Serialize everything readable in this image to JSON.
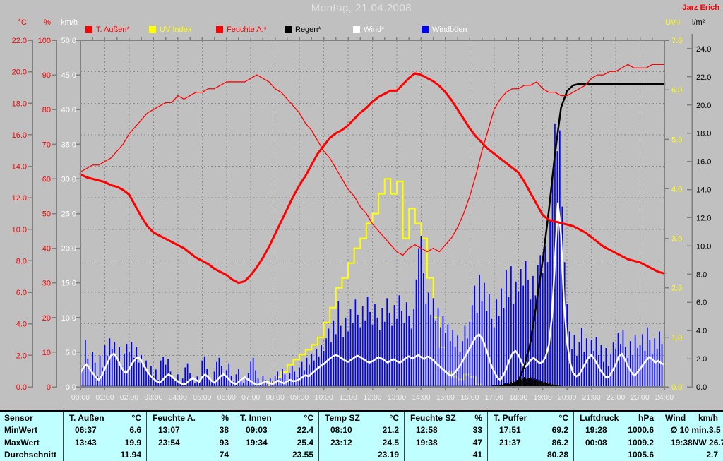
{
  "window": {
    "title": "Montag, 21.04.2008",
    "author": "Jarz Erich"
  },
  "legend": [
    {
      "label": "T. Außen*",
      "swatch": "#ff0000",
      "text_color": "#ff0000"
    },
    {
      "label": "UV Index",
      "swatch": "#ffff00",
      "text_color": "#ffff00"
    },
    {
      "label": "Feuchte A.*",
      "swatch": "#ff0000",
      "text_color": "#ff0000"
    },
    {
      "label": "Regen*",
      "swatch": "#000000",
      "text_color": "#000000"
    },
    {
      "label": "Wind*",
      "swatch": "#ffffff",
      "text_color": "#ffffff"
    },
    {
      "label": "Windböen",
      "swatch": "#0000ff",
      "text_color": "#ffffff"
    }
  ],
  "axes": {
    "left": [
      {
        "title": "°C",
        "color": "#ff0000",
        "min": 0,
        "max": 22,
        "step": 2,
        "decimals": 1
      },
      {
        "title": "%",
        "color": "#ff0000",
        "min": 0,
        "max": 100,
        "step": 10,
        "decimals": 0
      },
      {
        "title": "km/h",
        "color": "#ffffff",
        "min": 0,
        "max": 50,
        "step": 5,
        "decimals": 1
      }
    ],
    "right": [
      {
        "title": "UV-I",
        "color": "#ffff00",
        "min": 0,
        "max": 7,
        "step": 1,
        "decimals": 1,
        "scale_max": 7
      },
      {
        "title": "l/m²",
        "color": "#000000",
        "min": 0,
        "max": 24,
        "step": 2,
        "decimals": 1,
        "scale_max": 24.6
      }
    ],
    "x_labels": [
      "00:00",
      "01:00",
      "02:00",
      "03:00",
      "04:00",
      "05:00",
      "06:00",
      "07:00",
      "08:00",
      "09:00",
      "10:00",
      "11:00",
      "12:00",
      "13:00",
      "14:00",
      "15:00",
      "16:00",
      "17:00",
      "18:00",
      "19:00",
      "20:00",
      "21:00",
      "22:00",
      "23:00",
      "24:00"
    ]
  },
  "chart_data": {
    "type": "line",
    "title": "Montag, 21.04.2008",
    "x_unit": "hours",
    "x_range": [
      0,
      24
    ],
    "grid": {
      "vertical_every_hours": 1,
      "horizontal_every_degC": 2
    },
    "series": [
      {
        "name": "T. Außen",
        "unit": "°C",
        "color": "#ff0000",
        "draw": "line",
        "width": 3,
        "axis_max": 22,
        "x_step": 0.25,
        "values": [
          13.5,
          13.3,
          13.2,
          13.1,
          13.0,
          12.8,
          12.7,
          12.5,
          12.2,
          11.5,
          10.8,
          10.2,
          9.8,
          9.6,
          9.4,
          9.2,
          9.0,
          8.8,
          8.5,
          8.2,
          8.0,
          7.8,
          7.5,
          7.3,
          7.1,
          6.8,
          6.6,
          6.7,
          7.1,
          7.6,
          8.2,
          8.9,
          9.7,
          10.5,
          11.3,
          12.1,
          12.8,
          13.4,
          14.1,
          14.8,
          15.3,
          15.8,
          16.1,
          16.3,
          16.6,
          17.0,
          17.4,
          17.7,
          18.1,
          18.4,
          18.6,
          18.8,
          18.8,
          19.2,
          19.6,
          19.9,
          19.8,
          19.6,
          19.4,
          19.1,
          18.7,
          18.2,
          17.6,
          17.0,
          16.4,
          15.9,
          15.5,
          15.1,
          14.8,
          14.5,
          14.2,
          13.9,
          13.6,
          13.0,
          12.3,
          11.6,
          10.9,
          10.6,
          10.5,
          10.4,
          10.3,
          10.2,
          10.0,
          9.8,
          9.5,
          9.2,
          8.9,
          8.7,
          8.5,
          8.3,
          8.1,
          8.0,
          7.9,
          7.7,
          7.5,
          7.3,
          7.2
        ]
      },
      {
        "name": "Feuchte A.",
        "unit": "%",
        "color": "#ff0000",
        "draw": "line",
        "width": 1.3,
        "axis_max": 100,
        "x_step": 0.25,
        "values": [
          62,
          63,
          64,
          64,
          65,
          66,
          68,
          70,
          73,
          75,
          77,
          79,
          80,
          81,
          82,
          82,
          84,
          83,
          84,
          85,
          85,
          86,
          86,
          87,
          88,
          88,
          88,
          88,
          89,
          90,
          89,
          88,
          86,
          85,
          83,
          81,
          79,
          76,
          74,
          71,
          68,
          66,
          63,
          60,
          57,
          55,
          52,
          50,
          47,
          45,
          43,
          41,
          39,
          38,
          40,
          41,
          40,
          39,
          40,
          39,
          41,
          43,
          46,
          50,
          55,
          61,
          68,
          74,
          80,
          83,
          85,
          86,
          86,
          87,
          87,
          88,
          86,
          85,
          85,
          84,
          84,
          85,
          86,
          87,
          89,
          90,
          90,
          91,
          91,
          92,
          93,
          92,
          92,
          92,
          93,
          93,
          93
        ]
      },
      {
        "name": "UV Index",
        "unit": "UV-I",
        "color": "#ffff00",
        "draw": "step",
        "width": 2,
        "axis_max": 7,
        "x_step": 0.25,
        "values": [
          0,
          0,
          0,
          0,
          0,
          0,
          0,
          0,
          0,
          0,
          0,
          0,
          0,
          0,
          0,
          0,
          0,
          0,
          0,
          0,
          0,
          0,
          0,
          0,
          0,
          0,
          0,
          0,
          0,
          0,
          0,
          0.1,
          0.2,
          0.3,
          0.45,
          0.55,
          0.65,
          0.75,
          0.85,
          1.0,
          1.3,
          1.6,
          2.0,
          2.2,
          2.5,
          2.8,
          3.0,
          3.3,
          3.5,
          3.9,
          4.2,
          3.9,
          4.15,
          3.0,
          3.6,
          3.3,
          3.0,
          2.2,
          1.4,
          0.8,
          0.3,
          0.2,
          0.15,
          0.25,
          0.2,
          0.05,
          0,
          0,
          0,
          0,
          0,
          0,
          0,
          0,
          0,
          0,
          0,
          0,
          0,
          0,
          0,
          0,
          0,
          0,
          0,
          0,
          0,
          0,
          0,
          0,
          0,
          0,
          0,
          0,
          0,
          0,
          0
        ]
      },
      {
        "name": "Windböen",
        "unit": "km/h",
        "color": "#0000ff",
        "draw": "bar",
        "bar_w": 1.7,
        "axis_max": 50,
        "x_step": 0.1,
        "values": [
          5.5,
          3.0,
          6.8,
          4.0,
          2.5,
          5.0,
          3.5,
          1.5,
          4.5,
          2.8,
          6.0,
          4.5,
          7.0,
          5.5,
          6.5,
          4.0,
          5.8,
          3.0,
          4.8,
          6.2,
          5.0,
          6.5,
          4.2,
          5.8,
          3.5,
          4.6,
          2.8,
          3.8,
          2.0,
          3.0,
          1.5,
          2.5,
          1.0,
          3.8,
          4.3,
          3.2,
          4.0,
          2.2,
          1.2,
          0.8,
          1.8,
          0.6,
          1.2,
          2.8,
          3.4,
          2.0,
          1.0,
          0.5,
          1.5,
          0.8,
          3.8,
          4.4,
          2.6,
          1.4,
          0.8,
          2.2,
          3.6,
          4.2,
          3.0,
          1.8,
          2.4,
          3.4,
          1.6,
          0.8,
          1.8,
          2.6,
          1.2,
          0.6,
          1.4,
          2.0,
          3.6,
          4.2,
          2.4,
          1.2,
          0.6,
          1.6,
          1.0,
          0.4,
          1.2,
          0.8,
          1.6,
          2.2,
          1.2,
          2.6,
          1.8,
          1.0,
          2.0,
          3.0,
          2.2,
          1.4,
          2.8,
          3.6,
          2.4,
          4.2,
          3.2,
          4.8,
          3.8,
          5.4,
          4.4,
          6.0,
          5.2,
          7.0,
          8.4,
          6.4,
          9.6,
          7.6,
          12.4,
          8.8,
          7.2,
          10.0,
          8.0,
          11.2,
          9.2,
          12.6,
          10.4,
          8.6,
          11.6,
          9.6,
          13.0,
          10.8,
          9.0,
          12.0,
          10.0,
          8.2,
          11.4,
          9.4,
          12.8,
          10.6,
          8.8,
          11.8,
          9.8,
          13.2,
          11.0,
          9.2,
          12.2,
          10.2,
          8.4,
          11.2,
          15.5,
          20.0,
          21.8,
          16.5,
          12.0,
          13.6,
          10.4,
          12.8,
          9.6,
          11.4,
          8.6,
          10.2,
          7.8,
          9.0,
          6.6,
          8.2,
          5.8,
          7.4,
          5.0,
          6.6,
          8.8,
          7.0,
          9.4,
          11.8,
          14.6,
          10.6,
          16.2,
          12.4,
          15.0,
          11.0,
          13.4,
          9.8,
          8.6,
          12.6,
          10.2,
          14.2,
          11.4,
          16.8,
          13.0,
          17.4,
          12.0,
          15.2,
          13.8,
          17.0,
          14.6,
          18.2,
          15.4,
          12.6,
          16.0,
          13.2,
          17.6,
          19.0,
          16.4,
          20.4,
          18.0,
          24.0,
          30.0,
          38.0,
          34.0,
          37.0,
          26.0,
          18.0,
          12.0,
          8.0,
          5.5,
          7.5,
          4.5,
          6.5,
          8.5,
          5.0,
          7.0,
          4.0,
          6.8,
          5.2,
          7.2,
          4.6,
          6.0,
          3.6,
          5.6,
          3.0,
          4.8,
          6.4,
          5.4,
          7.8,
          6.2,
          8.2,
          5.8,
          4.2,
          6.6,
          4.6,
          7.4,
          5.6,
          6.0,
          7.6,
          5.2,
          8.6,
          6.8,
          4.8,
          7.0,
          5.4,
          8.0,
          6.2,
          5.0
        ]
      },
      {
        "name": "Wind",
        "unit": "km/h",
        "color": "#ffffff",
        "draw": "line",
        "width": 2.5,
        "axis_max": 50,
        "x_step": 0.125,
        "values": [
          2.0,
          2.8,
          3.3,
          2.6,
          2.0,
          1.4,
          1.0,
          1.6,
          2.6,
          3.6,
          4.5,
          4.8,
          4.2,
          3.2,
          2.4,
          2.0,
          2.6,
          3.4,
          4.0,
          4.3,
          3.8,
          3.0,
          2.2,
          1.6,
          1.2,
          0.8,
          0.6,
          1.0,
          1.5,
          1.8,
          1.5,
          1.1,
          0.8,
          0.5,
          0.3,
          0.6,
          1.0,
          1.3,
          1.0,
          0.7,
          1.4,
          1.8,
          1.4,
          0.9,
          0.6,
          1.0,
          1.5,
          1.8,
          1.5,
          1.0,
          0.6,
          0.4,
          0.7,
          1.1,
          1.4,
          1.1,
          0.8,
          0.5,
          0.3,
          0.4,
          0.6,
          0.8,
          0.6,
          0.4,
          0.6,
          0.9,
          0.7,
          0.5,
          0.8,
          1.0,
          0.8,
          0.9,
          1.1,
          1.4,
          1.7,
          1.5,
          1.9,
          2.3,
          2.7,
          3.0,
          3.3,
          3.7,
          4.1,
          4.4,
          4.6,
          4.4,
          4.1,
          3.8,
          3.6,
          3.9,
          4.2,
          4.5,
          4.3,
          4.0,
          3.7,
          3.5,
          3.7,
          4.0,
          4.3,
          4.1,
          3.8,
          3.5,
          3.8,
          4.0,
          3.7,
          3.5,
          3.8,
          4.2,
          4.4,
          4.1,
          4.3,
          4.6,
          4.3,
          4.0,
          4.4,
          4.2,
          3.8,
          3.4,
          3.0,
          2.6,
          2.2,
          1.8,
          1.6,
          2.0,
          2.6,
          3.2,
          4.0,
          4.8,
          5.6,
          6.4,
          7.2,
          7.6,
          7.0,
          6.0,
          4.6,
          3.2,
          2.2,
          1.4,
          1.0,
          1.6,
          2.6,
          3.8,
          4.8,
          5.2,
          4.6,
          3.6,
          2.8,
          3.2,
          3.8,
          4.2,
          3.8,
          3.4,
          3.6,
          4.4,
          6.0,
          10.0,
          18.0,
          26.5,
          22.0,
          12.0,
          6.5,
          3.5,
          2.0,
          1.5,
          1.8,
          2.6,
          3.4,
          4.2,
          4.6,
          4.0,
          3.2,
          2.4,
          1.8,
          1.3,
          1.6,
          2.4,
          3.2,
          4.4,
          4.8,
          4.0,
          3.0,
          2.2,
          1.6,
          2.0,
          2.6,
          3.2,
          3.8,
          4.3,
          4.0,
          3.5,
          3.8,
          3.4,
          3.2
        ]
      },
      {
        "name": "Regen Rate",
        "unit": "l/m²",
        "color": "#000000",
        "draw": "bar",
        "bar_w": 1.7,
        "axis_max": 24.6,
        "x_start": 16.9,
        "x_step": 0.05,
        "values": [
          0.05,
          0.1,
          0.07,
          0.12,
          0.1,
          0.15,
          0.12,
          0.1,
          0.18,
          0.15,
          0.2,
          0.25,
          0.2,
          0.3,
          0.25,
          0.2,
          0.35,
          0.3,
          0.4,
          0.35,
          0.45,
          0.5,
          0.45,
          0.55,
          0.6,
          0.5,
          0.65,
          0.7,
          0.6,
          0.55,
          0.65,
          0.6,
          0.7,
          0.65,
          0.55,
          0.6,
          0.5,
          0.55,
          0.45,
          0.5,
          0.4,
          0.45,
          0.35,
          0.3,
          0.35,
          0.25,
          0.3,
          0.2,
          0.25,
          0.15,
          0.2,
          0.12,
          0.15,
          0.1,
          0.12,
          0.08,
          0.1,
          0.06,
          0.05,
          0.04,
          0.03,
          0.02,
          0.01
        ]
      },
      {
        "name": "Regen",
        "unit": "l/m²",
        "color": "#000000",
        "draw": "line",
        "width": 2.5,
        "axis_max": 24.6,
        "x_step": 0.25,
        "values": [
          0,
          0,
          0,
          0,
          0,
          0,
          0,
          0,
          0,
          0,
          0,
          0,
          0,
          0,
          0,
          0,
          0,
          0,
          0,
          0,
          0,
          0,
          0,
          0,
          0,
          0,
          0,
          0,
          0,
          0,
          0,
          0,
          0,
          0,
          0,
          0,
          0,
          0,
          0,
          0,
          0,
          0,
          0,
          0,
          0,
          0,
          0,
          0,
          0,
          0,
          0,
          0,
          0,
          0,
          0,
          0,
          0,
          0,
          0,
          0,
          0,
          0,
          0,
          0,
          0,
          0,
          0,
          0,
          0,
          0,
          0,
          0,
          0.4,
          1.5,
          3.2,
          6.0,
          9.0,
          12.5,
          16.5,
          19.8,
          21.0,
          21.4,
          21.5,
          21.5,
          21.5,
          21.5,
          21.5,
          21.5,
          21.5,
          21.5,
          21.5,
          21.5,
          21.5,
          21.5,
          21.5,
          21.5,
          21.5
        ]
      }
    ]
  },
  "table": {
    "row_labels": [
      "Sensor",
      "MinWert",
      "MaxWert",
      "Durchschnitt"
    ],
    "columns": [
      {
        "label": "T. Außen",
        "unit": "°C",
        "min": [
          "06:37",
          "6.6"
        ],
        "max": [
          "13:43",
          "19.9"
        ],
        "avg": "11.94"
      },
      {
        "label": "Feuchte A.",
        "unit": "%",
        "min": [
          "13:07",
          "38"
        ],
        "max": [
          "23:54",
          "93"
        ],
        "avg": "74"
      },
      {
        "label": "T. Innen",
        "unit": "°C",
        "min": [
          "09:03",
          "22.4"
        ],
        "max": [
          "19:34",
          "25.4"
        ],
        "avg": "23.55"
      },
      {
        "label": "Temp SZ",
        "unit": "°C",
        "min": [
          "08:10",
          "21.2"
        ],
        "max": [
          "23:12",
          "24.5"
        ],
        "avg": "23.19"
      },
      {
        "label": "Feuchte SZ",
        "unit": "%",
        "min": [
          "12:58",
          "33"
        ],
        "max": [
          "19:38",
          "47"
        ],
        "avg": "41"
      },
      {
        "label": "T. Puffer",
        "unit": "°C",
        "min": [
          "17:51",
          "69.2"
        ],
        "max": [
          "21:37",
          "86.2"
        ],
        "avg": "80.28"
      },
      {
        "label": "Luftdruck",
        "unit": "hPa",
        "min": [
          "19:28",
          "1000.6"
        ],
        "max": [
          "00:08",
          "1009.2"
        ],
        "avg": "1005.6"
      },
      {
        "label": "Wind",
        "unit": "km/h",
        "min": [
          "Ø 10 min.",
          "3.5"
        ],
        "max": [
          "19:38",
          "NW 26.7"
        ],
        "avg": "2.7"
      }
    ]
  }
}
